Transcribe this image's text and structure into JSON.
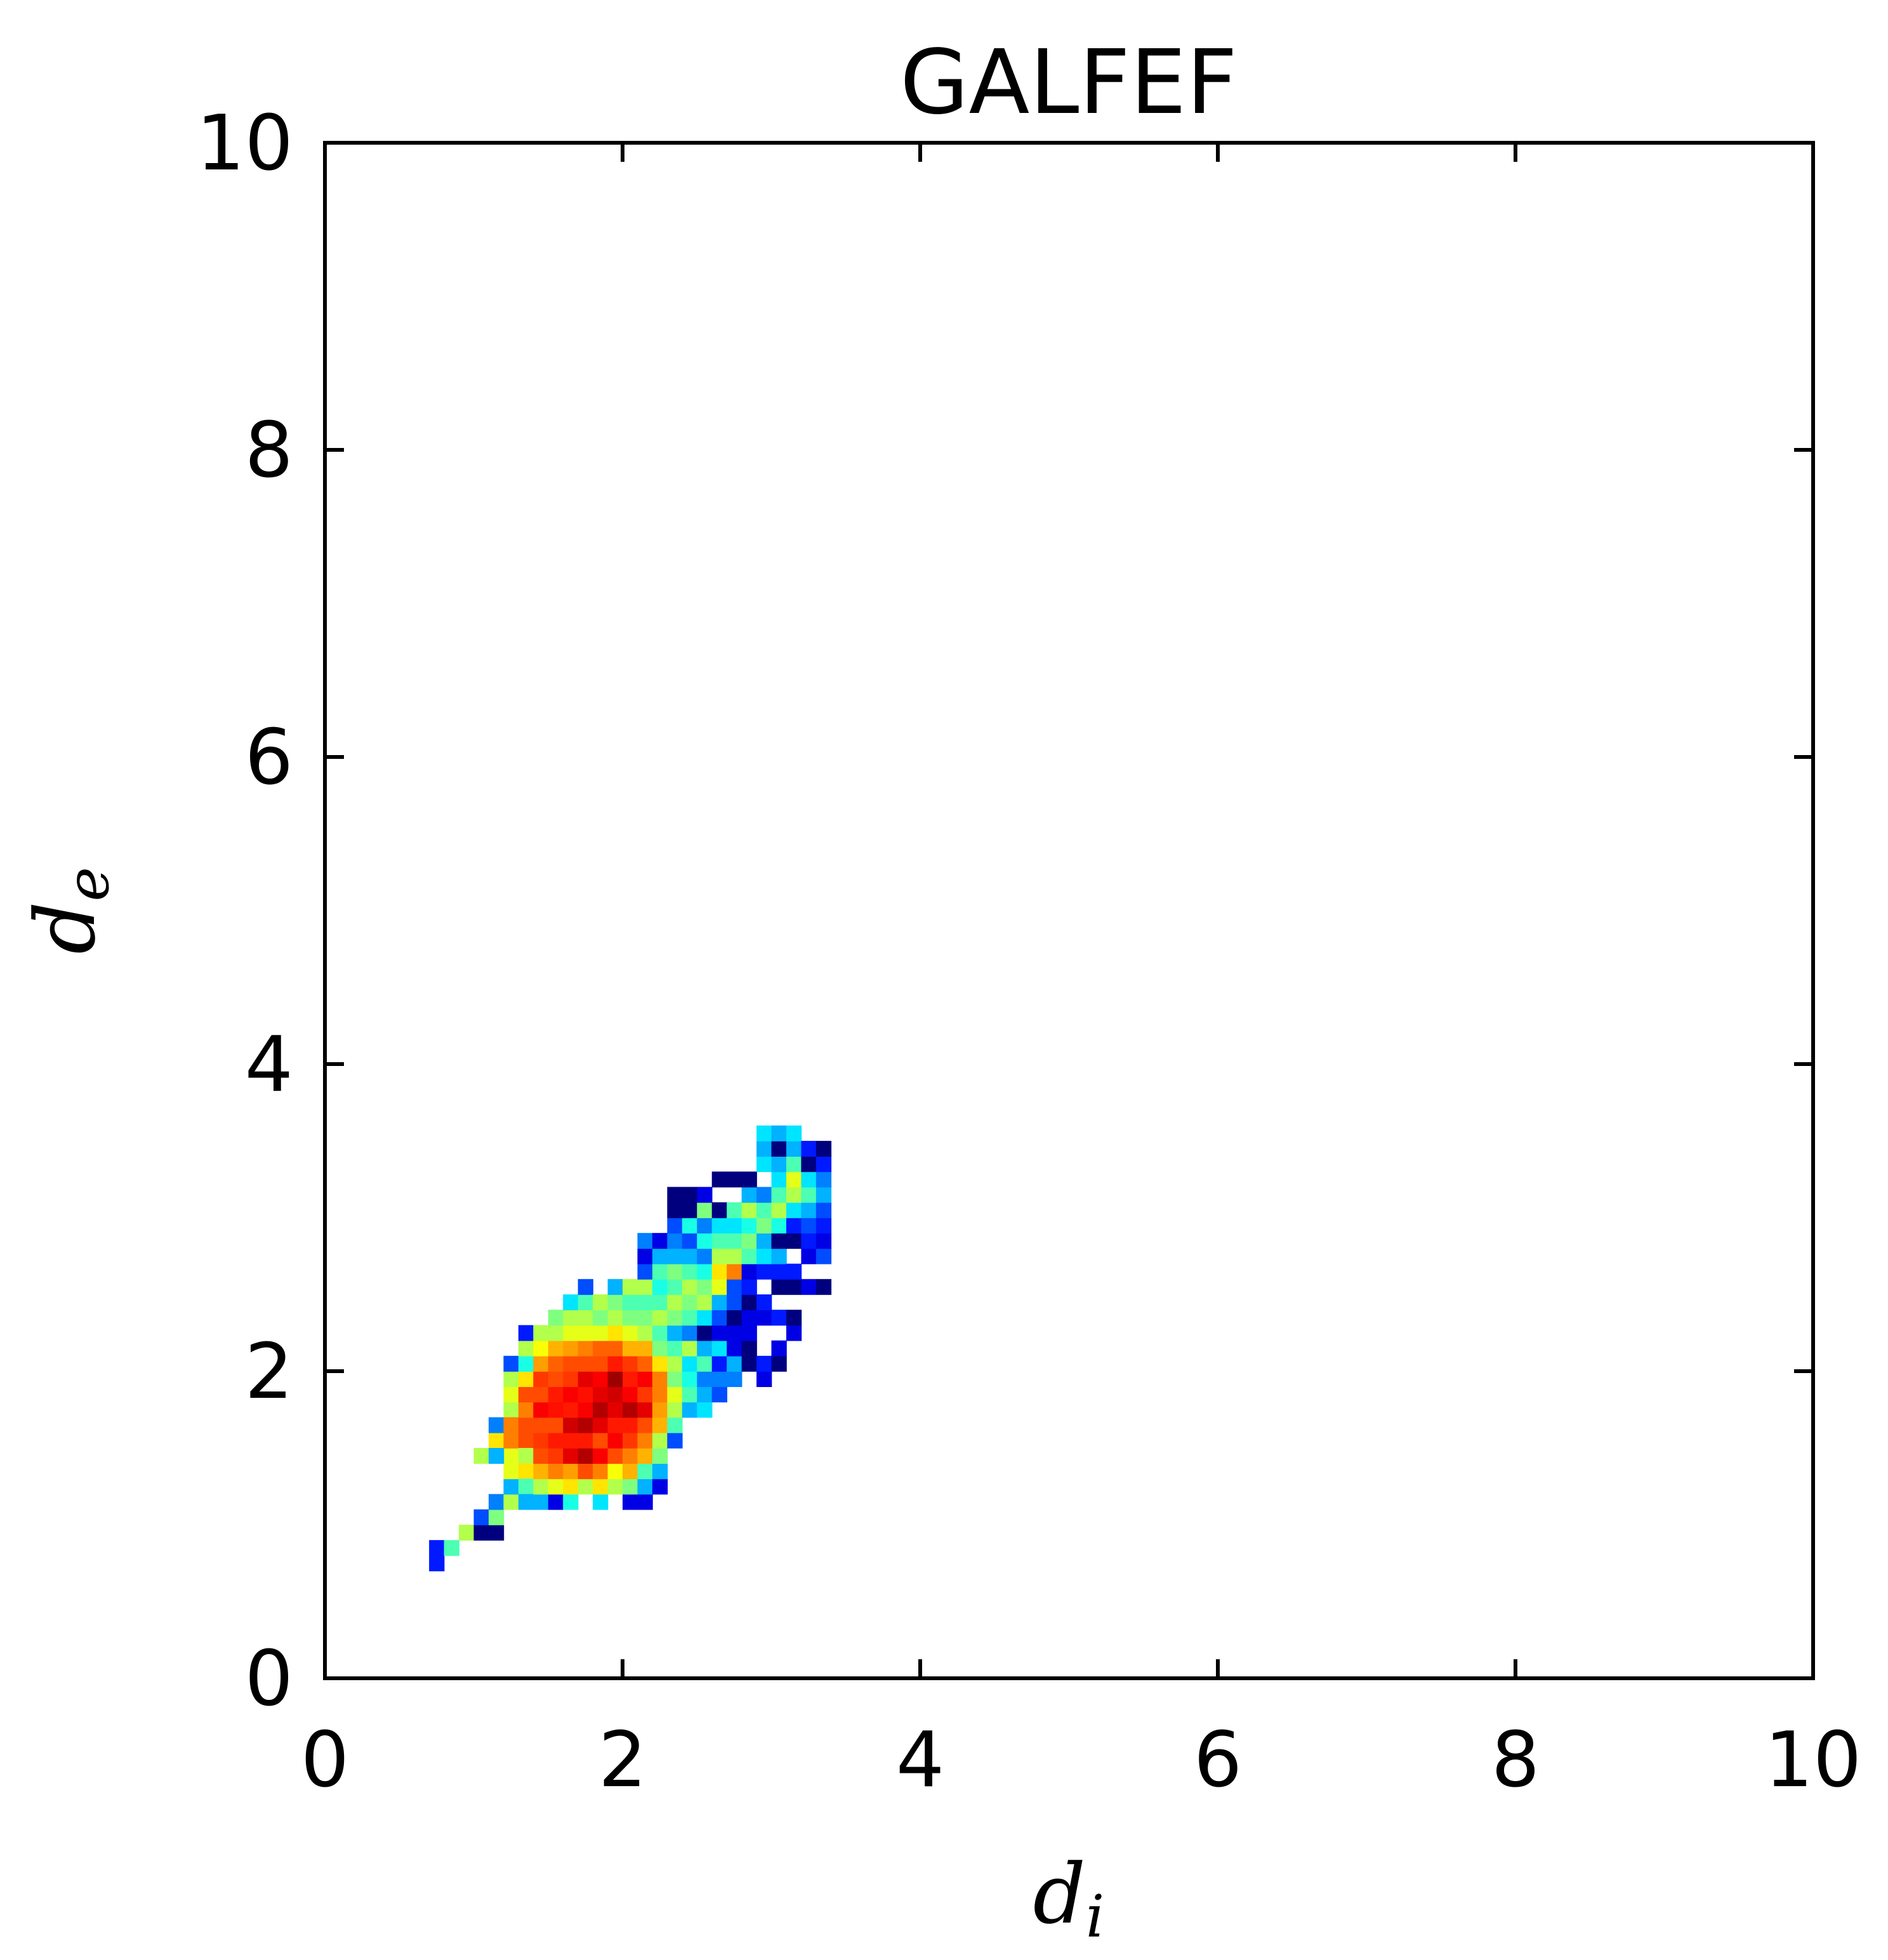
{
  "chart_data": {
    "type": "heatmap",
    "title": "GALFEF",
    "xlabel": {
      "base": "d",
      "subscript": "i"
    },
    "ylabel": {
      "base": "d",
      "subscript": "e"
    },
    "xlim": [
      0,
      10
    ],
    "ylim": [
      0,
      10
    ],
    "x_ticks": [
      "0",
      "2",
      "4",
      "6",
      "8",
      "10"
    ],
    "y_ticks": [
      "0",
      "2",
      "4",
      "6",
      "8",
      "10"
    ],
    "grid": false,
    "legend": "none",
    "colormap": "jet",
    "bin_size": 0.1,
    "colormap_stops": [
      "#00007f",
      "#0000ff",
      "#007fff",
      "#00ffff",
      "#7fff7f",
      "#ffff00",
      "#ff7f00",
      "#ff0000",
      "#7f0000"
    ],
    "cells": [
      [
        0.7,
        0.7,
        0.15
      ],
      [
        0.7,
        0.8,
        0.15
      ],
      [
        0.8,
        0.8,
        0.45
      ],
      [
        0.9,
        0.9,
        0.55
      ],
      [
        1.0,
        0.9,
        0.0
      ],
      [
        1.0,
        1.0,
        0.2
      ],
      [
        1.1,
        0.9,
        0.0
      ],
      [
        1.1,
        1.0,
        0.5
      ],
      [
        1.1,
        1.1,
        0.25
      ],
      [
        1.2,
        1.1,
        0.55
      ],
      [
        1.2,
        1.2,
        0.3
      ],
      [
        1.2,
        1.3,
        0.6
      ],
      [
        1.0,
        1.4,
        0.55
      ],
      [
        1.1,
        1.4,
        0.65
      ],
      [
        1.2,
        1.4,
        0.6
      ],
      [
        1.1,
        1.5,
        0.65
      ],
      [
        1.2,
        1.5,
        0.75
      ],
      [
        1.1,
        1.6,
        0.25
      ],
      [
        1.1,
        1.4,
        0.3
      ],
      [
        1.2,
        1.7,
        0.55
      ],
      [
        1.2,
        1.6,
        0.75
      ],
      [
        1.3,
        1.5,
        0.8
      ],
      [
        1.3,
        1.4,
        0.55
      ],
      [
        1.3,
        1.3,
        0.65
      ],
      [
        1.3,
        1.2,
        0.45
      ],
      [
        1.3,
        1.1,
        0.3
      ],
      [
        1.2,
        1.8,
        0.6
      ],
      [
        1.2,
        1.9,
        0.55
      ],
      [
        1.2,
        2.0,
        0.2
      ],
      [
        1.3,
        1.6,
        0.8
      ],
      [
        1.3,
        1.7,
        0.75
      ],
      [
        1.3,
        1.8,
        0.8
      ],
      [
        1.3,
        1.9,
        0.65
      ],
      [
        1.3,
        2.0,
        0.4
      ],
      [
        1.3,
        2.1,
        0.55
      ],
      [
        1.3,
        2.2,
        0.15
      ],
      [
        1.4,
        1.1,
        0.3
      ],
      [
        1.4,
        1.2,
        0.55
      ],
      [
        1.4,
        1.3,
        0.7
      ],
      [
        1.4,
        1.4,
        0.8
      ],
      [
        1.4,
        1.5,
        0.82
      ],
      [
        1.4,
        1.6,
        0.8
      ],
      [
        1.4,
        1.7,
        0.88
      ],
      [
        1.4,
        1.8,
        0.8
      ],
      [
        1.4,
        1.9,
        0.82
      ],
      [
        1.4,
        2.0,
        0.72
      ],
      [
        1.4,
        2.1,
        0.62
      ],
      [
        1.4,
        2.2,
        0.55
      ],
      [
        1.5,
        1.1,
        0.1
      ],
      [
        1.5,
        1.2,
        0.6
      ],
      [
        1.5,
        1.3,
        0.75
      ],
      [
        1.5,
        1.4,
        0.82
      ],
      [
        1.5,
        1.5,
        0.85
      ],
      [
        1.5,
        1.6,
        0.8
      ],
      [
        1.5,
        1.7,
        0.86
      ],
      [
        1.5,
        1.8,
        0.85
      ],
      [
        1.5,
        1.9,
        0.8
      ],
      [
        1.5,
        2.0,
        0.78
      ],
      [
        1.5,
        2.1,
        0.7
      ],
      [
        1.5,
        2.2,
        0.55
      ],
      [
        1.5,
        2.3,
        0.5
      ],
      [
        1.6,
        1.1,
        0.4
      ],
      [
        1.6,
        1.2,
        0.65
      ],
      [
        1.6,
        1.3,
        0.72
      ],
      [
        1.6,
        1.4,
        0.9
      ],
      [
        1.6,
        1.5,
        0.85
      ],
      [
        1.6,
        1.6,
        0.92
      ],
      [
        1.6,
        1.7,
        0.85
      ],
      [
        1.6,
        1.8,
        0.88
      ],
      [
        1.6,
        1.9,
        0.82
      ],
      [
        1.6,
        2.0,
        0.8
      ],
      [
        1.6,
        2.1,
        0.72
      ],
      [
        1.6,
        2.2,
        0.6
      ],
      [
        1.6,
        2.3,
        0.55
      ],
      [
        1.6,
        2.4,
        0.35
      ],
      [
        1.7,
        1.2,
        0.55
      ],
      [
        1.7,
        1.3,
        0.8
      ],
      [
        1.7,
        1.4,
        0.95
      ],
      [
        1.7,
        1.5,
        0.85
      ],
      [
        1.7,
        1.6,
        0.95
      ],
      [
        1.7,
        1.7,
        0.88
      ],
      [
        1.7,
        1.8,
        0.86
      ],
      [
        1.7,
        1.9,
        0.9
      ],
      [
        1.7,
        2.0,
        0.8
      ],
      [
        1.7,
        2.1,
        0.75
      ],
      [
        1.7,
        2.2,
        0.6
      ],
      [
        1.7,
        2.3,
        0.55
      ],
      [
        1.7,
        2.4,
        0.45
      ],
      [
        1.7,
        2.5,
        0.2
      ],
      [
        1.8,
        1.1,
        0.35
      ],
      [
        1.8,
        1.2,
        0.65
      ],
      [
        1.8,
        1.3,
        0.75
      ],
      [
        1.8,
        1.4,
        0.88
      ],
      [
        1.8,
        1.5,
        0.8
      ],
      [
        1.8,
        1.6,
        0.9
      ],
      [
        1.8,
        1.7,
        0.95
      ],
      [
        1.8,
        1.8,
        0.9
      ],
      [
        1.8,
        1.9,
        0.88
      ],
      [
        1.8,
        2.0,
        0.8
      ],
      [
        1.8,
        2.1,
        0.78
      ],
      [
        1.8,
        2.2,
        0.6
      ],
      [
        1.8,
        2.3,
        0.5
      ],
      [
        1.8,
        2.4,
        0.55
      ],
      [
        1.9,
        1.2,
        0.55
      ],
      [
        1.9,
        1.3,
        0.62
      ],
      [
        1.9,
        1.4,
        0.8
      ],
      [
        1.9,
        1.5,
        0.88
      ],
      [
        1.9,
        1.6,
        0.85
      ],
      [
        1.9,
        1.7,
        0.9
      ],
      [
        1.9,
        1.8,
        0.92
      ],
      [
        1.9,
        1.9,
        0.97
      ],
      [
        1.9,
        2.0,
        0.85
      ],
      [
        1.9,
        2.1,
        0.78
      ],
      [
        1.9,
        2.2,
        0.65
      ],
      [
        1.9,
        2.3,
        0.55
      ],
      [
        1.9,
        2.4,
        0.5
      ],
      [
        1.9,
        2.5,
        0.3
      ],
      [
        2.0,
        1.1,
        0.1
      ],
      [
        2.0,
        1.2,
        0.5
      ],
      [
        2.0,
        1.3,
        0.7
      ],
      [
        2.0,
        1.4,
        0.75
      ],
      [
        2.0,
        1.5,
        0.82
      ],
      [
        2.0,
        1.6,
        0.85
      ],
      [
        2.0,
        1.7,
        0.95
      ],
      [
        2.0,
        1.8,
        0.88
      ],
      [
        2.0,
        1.9,
        0.85
      ],
      [
        2.0,
        2.0,
        0.82
      ],
      [
        2.0,
        2.1,
        0.7
      ],
      [
        2.0,
        2.2,
        0.6
      ],
      [
        2.0,
        2.3,
        0.5
      ],
      [
        2.0,
        2.4,
        0.45
      ],
      [
        2.0,
        2.5,
        0.55
      ],
      [
        2.1,
        1.1,
        0.1
      ],
      [
        2.1,
        1.2,
        0.3
      ],
      [
        2.1,
        1.3,
        0.45
      ],
      [
        2.1,
        1.4,
        0.7
      ],
      [
        2.1,
        1.5,
        0.75
      ],
      [
        2.1,
        1.6,
        0.8
      ],
      [
        2.1,
        1.7,
        0.9
      ],
      [
        2.1,
        1.8,
        0.82
      ],
      [
        2.1,
        1.9,
        0.88
      ],
      [
        2.1,
        2.0,
        0.78
      ],
      [
        2.1,
        2.1,
        0.7
      ],
      [
        2.1,
        2.2,
        0.55
      ],
      [
        2.1,
        2.3,
        0.5
      ],
      [
        2.1,
        2.4,
        0.45
      ],
      [
        2.1,
        2.5,
        0.55
      ],
      [
        2.1,
        2.6,
        0.2
      ],
      [
        2.1,
        2.7,
        0.1
      ],
      [
        2.1,
        2.8,
        0.25
      ],
      [
        2.2,
        1.2,
        0.1
      ],
      [
        2.2,
        1.3,
        0.3
      ],
      [
        2.2,
        1.4,
        0.5
      ],
      [
        2.2,
        1.5,
        0.55
      ],
      [
        2.2,
        1.6,
        0.7
      ],
      [
        2.2,
        1.7,
        0.72
      ],
      [
        2.2,
        1.8,
        0.75
      ],
      [
        2.2,
        1.9,
        0.75
      ],
      [
        2.2,
        2.0,
        0.65
      ],
      [
        2.2,
        2.1,
        0.5
      ],
      [
        2.2,
        2.2,
        0.45
      ],
      [
        2.2,
        2.3,
        0.55
      ],
      [
        2.2,
        2.4,
        0.45
      ],
      [
        2.2,
        2.5,
        0.4
      ],
      [
        2.2,
        2.6,
        0.45
      ],
      [
        2.2,
        2.7,
        0.3
      ],
      [
        2.2,
        2.8,
        0.1
      ],
      [
        2.3,
        1.5,
        0.2
      ],
      [
        2.3,
        1.6,
        0.45
      ],
      [
        2.3,
        1.7,
        0.55
      ],
      [
        2.3,
        1.8,
        0.6
      ],
      [
        2.3,
        1.9,
        0.5
      ],
      [
        2.3,
        2.0,
        0.55
      ],
      [
        2.3,
        2.1,
        0.45
      ],
      [
        2.3,
        2.2,
        0.3
      ],
      [
        2.3,
        2.3,
        0.5
      ],
      [
        2.3,
        2.4,
        0.55
      ],
      [
        2.3,
        2.5,
        0.45
      ],
      [
        2.3,
        2.6,
        0.5
      ],
      [
        2.3,
        2.7,
        0.3
      ],
      [
        2.3,
        2.8,
        0.25
      ],
      [
        2.3,
        2.9,
        0.2
      ],
      [
        2.3,
        3.0,
        0.0
      ],
      [
        2.3,
        3.1,
        0.0
      ],
      [
        2.4,
        1.7,
        0.3
      ],
      [
        2.4,
        1.8,
        0.45
      ],
      [
        2.4,
        1.9,
        0.4
      ],
      [
        2.4,
        2.0,
        0.35
      ],
      [
        2.4,
        2.1,
        0.55
      ],
      [
        2.4,
        2.2,
        0.25
      ],
      [
        2.4,
        2.3,
        0.45
      ],
      [
        2.4,
        2.4,
        0.5
      ],
      [
        2.4,
        2.5,
        0.55
      ],
      [
        2.4,
        2.6,
        0.45
      ],
      [
        2.4,
        2.7,
        0.3
      ],
      [
        2.4,
        2.8,
        0.2
      ],
      [
        2.4,
        2.9,
        0.4
      ],
      [
        2.4,
        3.0,
        0.0
      ],
      [
        2.4,
        3.1,
        0.0
      ],
      [
        2.5,
        1.7,
        0.35
      ],
      [
        2.5,
        1.8,
        0.3
      ],
      [
        2.5,
        1.9,
        0.25
      ],
      [
        2.5,
        2.0,
        0.45
      ],
      [
        2.5,
        2.1,
        0.3
      ],
      [
        2.5,
        2.2,
        0.0
      ],
      [
        2.5,
        2.3,
        0.35
      ],
      [
        2.5,
        2.4,
        0.55
      ],
      [
        2.5,
        2.5,
        0.5
      ],
      [
        2.5,
        2.6,
        0.4
      ],
      [
        2.5,
        2.7,
        0.25
      ],
      [
        2.5,
        2.8,
        0.4
      ],
      [
        2.5,
        2.9,
        0.25
      ],
      [
        2.5,
        3.0,
        0.5
      ],
      [
        2.5,
        3.1,
        0.1
      ],
      [
        2.6,
        1.8,
        0.2
      ],
      [
        2.6,
        1.9,
        0.25
      ],
      [
        2.6,
        2.0,
        0.15
      ],
      [
        2.6,
        2.1,
        0.35
      ],
      [
        2.6,
        2.2,
        0.1
      ],
      [
        2.6,
        2.3,
        0.2
      ],
      [
        2.6,
        2.4,
        0.3
      ],
      [
        2.6,
        2.5,
        0.6
      ],
      [
        2.6,
        2.6,
        0.65
      ],
      [
        2.6,
        2.7,
        0.55
      ],
      [
        2.6,
        2.8,
        0.45
      ],
      [
        2.6,
        2.9,
        0.35
      ],
      [
        2.6,
        3.0,
        0.0
      ],
      [
        2.6,
        3.2,
        0.0
      ],
      [
        2.7,
        1.9,
        0.25
      ],
      [
        2.7,
        2.0,
        0.3
      ],
      [
        2.7,
        2.1,
        0.1
      ],
      [
        2.7,
        2.2,
        0.1
      ],
      [
        2.7,
        2.3,
        0.0
      ],
      [
        2.7,
        2.4,
        0.2
      ],
      [
        2.7,
        2.5,
        0.2
      ],
      [
        2.7,
        2.6,
        0.75
      ],
      [
        2.7,
        2.7,
        0.55
      ],
      [
        2.7,
        2.8,
        0.45
      ],
      [
        2.7,
        2.9,
        0.35
      ],
      [
        2.7,
        3.0,
        0.45
      ],
      [
        2.7,
        3.2,
        0.0
      ],
      [
        2.8,
        2.0,
        0.0
      ],
      [
        2.8,
        2.1,
        0.0
      ],
      [
        2.8,
        2.2,
        0.1
      ],
      [
        2.8,
        2.3,
        0.1
      ],
      [
        2.8,
        2.4,
        0.0
      ],
      [
        2.8,
        2.5,
        0.15
      ],
      [
        2.8,
        2.6,
        0.1
      ],
      [
        2.8,
        2.7,
        0.45
      ],
      [
        2.8,
        2.8,
        0.5
      ],
      [
        2.8,
        2.9,
        0.4
      ],
      [
        2.8,
        3.0,
        0.55
      ],
      [
        2.8,
        3.1,
        0.3
      ],
      [
        2.8,
        3.2,
        0.0
      ],
      [
        2.9,
        1.9,
        0.1
      ],
      [
        2.9,
        2.0,
        0.15
      ],
      [
        2.9,
        2.3,
        0.1
      ],
      [
        2.9,
        2.4,
        0.15
      ],
      [
        2.9,
        2.6,
        0.15
      ],
      [
        2.9,
        2.7,
        0.35
      ],
      [
        2.9,
        2.8,
        0.3
      ],
      [
        2.9,
        2.9,
        0.5
      ],
      [
        2.9,
        3.0,
        0.45
      ],
      [
        2.9,
        3.1,
        0.25
      ],
      [
        2.9,
        3.3,
        0.35
      ],
      [
        2.9,
        3.4,
        0.3
      ],
      [
        2.9,
        3.5,
        0.35
      ],
      [
        3.0,
        2.0,
        0.0
      ],
      [
        3.0,
        2.1,
        0.1
      ],
      [
        3.0,
        2.3,
        0.15
      ],
      [
        3.0,
        2.5,
        0.0
      ],
      [
        3.0,
        2.6,
        0.15
      ],
      [
        3.0,
        2.7,
        0.3
      ],
      [
        3.0,
        2.8,
        0.0
      ],
      [
        3.0,
        2.9,
        0.4
      ],
      [
        3.0,
        3.0,
        0.55
      ],
      [
        3.0,
        3.1,
        0.45
      ],
      [
        3.0,
        3.2,
        0.35
      ],
      [
        3.0,
        3.3,
        0.3
      ],
      [
        3.0,
        3.4,
        0.0
      ],
      [
        3.0,
        3.5,
        0.3
      ],
      [
        3.1,
        2.2,
        0.1
      ],
      [
        3.1,
        2.3,
        0.0
      ],
      [
        3.1,
        2.5,
        0.0
      ],
      [
        3.1,
        2.6,
        0.15
      ],
      [
        3.1,
        2.8,
        0.0
      ],
      [
        3.1,
        2.9,
        0.15
      ],
      [
        3.1,
        3.0,
        0.35
      ],
      [
        3.1,
        3.1,
        0.55
      ],
      [
        3.1,
        3.2,
        0.6
      ],
      [
        3.1,
        3.3,
        0.45
      ],
      [
        3.1,
        3.4,
        0.3
      ],
      [
        3.1,
        3.5,
        0.35
      ],
      [
        3.2,
        2.5,
        0.1
      ],
      [
        3.2,
        2.7,
        0.1
      ],
      [
        3.2,
        2.8,
        0.15
      ],
      [
        3.2,
        2.9,
        0.2
      ],
      [
        3.2,
        3.0,
        0.3
      ],
      [
        3.2,
        3.1,
        0.45
      ],
      [
        3.2,
        3.2,
        0.35
      ],
      [
        3.2,
        3.3,
        0.0
      ],
      [
        3.2,
        3.4,
        0.15
      ],
      [
        3.3,
        2.5,
        0.0
      ],
      [
        3.3,
        2.7,
        0.2
      ],
      [
        3.3,
        2.8,
        0.1
      ],
      [
        3.3,
        2.9,
        0.15
      ],
      [
        3.3,
        3.0,
        0.2
      ],
      [
        3.3,
        3.1,
        0.3
      ],
      [
        3.3,
        3.2,
        0.25
      ],
      [
        3.3,
        3.3,
        0.15
      ],
      [
        3.3,
        3.4,
        0.0
      ]
    ]
  }
}
